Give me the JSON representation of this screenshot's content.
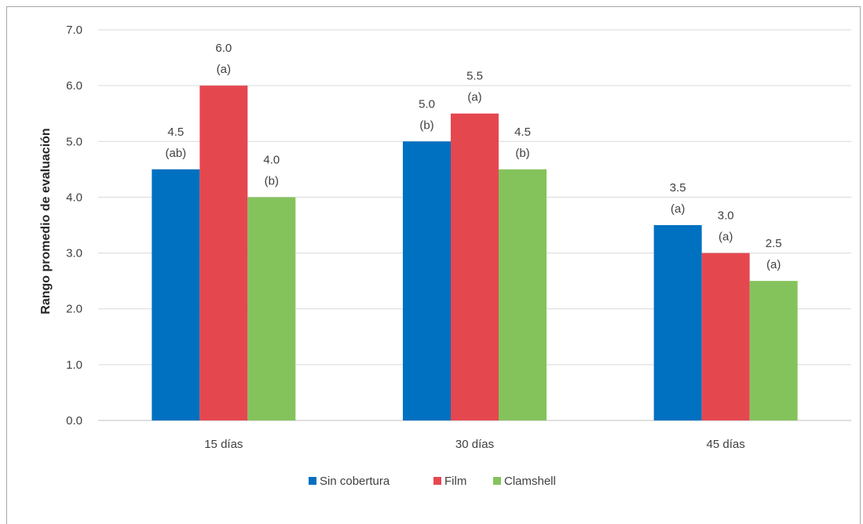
{
  "chart_data": {
    "type": "bar",
    "title": "",
    "xlabel": "",
    "ylabel": "Rango promedio de evaluación",
    "ylim": [
      0,
      7
    ],
    "yticks": [
      "0.0",
      "1.0",
      "2.0",
      "3.0",
      "4.0",
      "5.0",
      "6.0",
      "7.0"
    ],
    "grid": true,
    "legend_position": "bottom",
    "categories": [
      "15 días",
      "30 días",
      "45 días"
    ],
    "series": [
      {
        "name": "Sin cobertura",
        "color": "#0070c0",
        "values": [
          4.5,
          5.0,
          3.5
        ],
        "labels": [
          "4.5",
          "5.0",
          "3.5"
        ],
        "groups": [
          "(ab)",
          "(b)",
          "(a)"
        ]
      },
      {
        "name": "Film",
        "color": "#e5474f",
        "values": [
          6.0,
          5.5,
          3.0
        ],
        "labels": [
          "6.0",
          "5.5",
          "3.0"
        ],
        "groups": [
          "(a)",
          "(a)",
          "(a)"
        ]
      },
      {
        "name": "Clamshell",
        "color": "#84c35c",
        "values": [
          4.0,
          4.5,
          2.5
        ],
        "labels": [
          "4.0",
          "4.5",
          "2.5"
        ],
        "groups": [
          "(b)",
          "(b)",
          "(a)"
        ]
      }
    ]
  }
}
